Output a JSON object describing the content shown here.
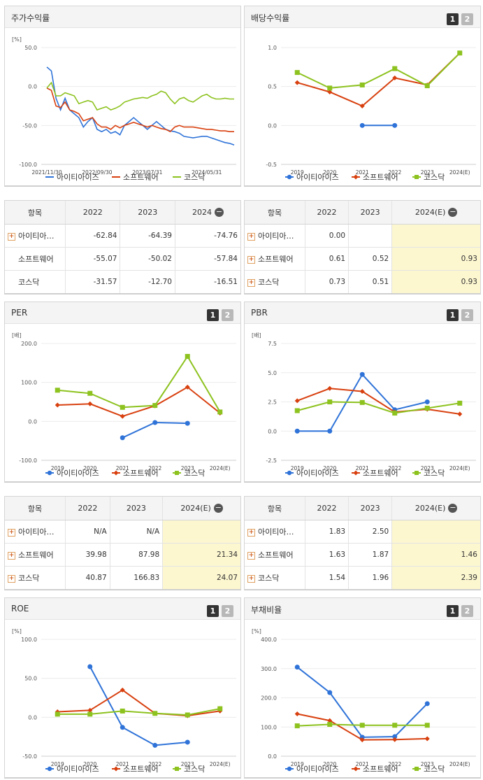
{
  "colors": {
    "blue": "#2f73d8",
    "red": "#d8400f",
    "green": "#8dc21f"
  },
  "legend": [
    "아이티아이즈",
    "소프트웨어",
    "코스닥"
  ],
  "panels": {
    "price": {
      "title": "주가수익률",
      "unit": "[%]",
      "tabs": []
    },
    "dividend": {
      "title": "배당수익률",
      "tabs": [
        "1",
        "2"
      ]
    },
    "per": {
      "title": "PER",
      "unit": "[배]",
      "tabs": [
        "1",
        "2"
      ]
    },
    "pbr": {
      "title": "PBR",
      "unit": "[배]",
      "tabs": [
        "1",
        "2"
      ]
    },
    "roe": {
      "title": "ROE",
      "unit": "[%]",
      "tabs": [
        "1",
        "2"
      ]
    },
    "debt": {
      "title": "부채비율",
      "unit": "[%]",
      "tabs": [
        "1",
        "2"
      ]
    }
  },
  "tables": {
    "price": {
      "headers": [
        "항목",
        "2022",
        "2023",
        "2024"
      ],
      "rows": [
        {
          "name": "아이티아…",
          "plus": true,
          "values": [
            "-62.84",
            "-64.39",
            "-74.76"
          ]
        },
        {
          "name": "소프트웨어",
          "plus": false,
          "values": [
            "-55.07",
            "-50.02",
            "-57.84"
          ]
        },
        {
          "name": "코스닥",
          "plus": false,
          "values": [
            "-31.57",
            "-12.70",
            "-16.51"
          ]
        }
      ]
    },
    "dividend": {
      "headers": [
        "항목",
        "2022",
        "2023",
        "2024(E)"
      ],
      "rows": [
        {
          "name": "아이티아…",
          "plus": true,
          "values": [
            "0.00",
            "",
            ""
          ]
        },
        {
          "name": "소프트웨어",
          "plus": true,
          "values": [
            "0.61",
            "0.52",
            "0.93"
          ]
        },
        {
          "name": "코스닥",
          "plus": true,
          "values": [
            "0.73",
            "0.51",
            "0.93"
          ]
        }
      ]
    },
    "per": {
      "headers": [
        "항목",
        "2022",
        "2023",
        "2024(E)"
      ],
      "rows": [
        {
          "name": "아이티아…",
          "plus": true,
          "values": [
            "N/A",
            "N/A",
            ""
          ]
        },
        {
          "name": "소프트웨어",
          "plus": true,
          "values": [
            "39.98",
            "87.98",
            "21.34"
          ]
        },
        {
          "name": "코스닥",
          "plus": true,
          "values": [
            "40.87",
            "166.83",
            "24.07"
          ]
        }
      ]
    },
    "pbr": {
      "headers": [
        "항목",
        "2022",
        "2023",
        "2024(E)"
      ],
      "rows": [
        {
          "name": "아이티아…",
          "plus": true,
          "values": [
            "1.83",
            "2.50",
            ""
          ]
        },
        {
          "name": "소프트웨어",
          "plus": true,
          "values": [
            "1.63",
            "1.87",
            "1.46"
          ]
        },
        {
          "name": "코스닥",
          "plus": true,
          "values": [
            "1.54",
            "1.96",
            "2.39"
          ]
        }
      ]
    }
  },
  "chart_data": [
    {
      "id": "price",
      "type": "line",
      "title": "주가수익률",
      "ylabel": "[%]",
      "ylim": [
        -100,
        50
      ],
      "yticks": [
        "50.0",
        "0.0",
        "-50.0",
        "-100.0"
      ],
      "x_tick_labels": [
        "2021/11/30",
        "2022/09/30",
        "2023/07/31",
        "2024/05/31"
      ],
      "x_count": 42,
      "series": [
        {
          "name": "아이티아이즈",
          "color": "blue",
          "values": [
            25,
            20,
            -15,
            -30,
            -15,
            -30,
            -35,
            -40,
            -52,
            -45,
            -40,
            -55,
            -58,
            -55,
            -60,
            -58,
            -62,
            -50,
            -45,
            -40,
            -45,
            -50,
            -55,
            -50,
            -45,
            -50,
            -55,
            -57,
            -58,
            -60,
            -64,
            -65,
            -66,
            -65,
            -64,
            -64,
            -66,
            -68,
            -70,
            -72,
            -73,
            -75
          ]
        },
        {
          "name": "소프트웨어",
          "color": "red",
          "values": [
            -2,
            -5,
            -25,
            -27,
            -20,
            -30,
            -32,
            -35,
            -44,
            -42,
            -40,
            -48,
            -52,
            -52,
            -55,
            -50,
            -53,
            -50,
            -48,
            -46,
            -48,
            -50,
            -52,
            -50,
            -52,
            -54,
            -55,
            -58,
            -52,
            -50,
            -52,
            -52,
            -52,
            -53,
            -54,
            -55,
            -55,
            -56,
            -57,
            -57,
            -58,
            -58
          ]
        },
        {
          "name": "코스닥",
          "color": "green",
          "values": [
            -2,
            5,
            -12,
            -12,
            -8,
            -10,
            -12,
            -22,
            -20,
            -18,
            -20,
            -30,
            -28,
            -26,
            -30,
            -28,
            -25,
            -20,
            -18,
            -16,
            -15,
            -14,
            -15,
            -12,
            -10,
            -6,
            -8,
            -16,
            -22,
            -16,
            -14,
            -18,
            -20,
            -16,
            -12,
            -10,
            -14,
            -16,
            -16,
            -15,
            -16,
            -16
          ]
        }
      ]
    },
    {
      "id": "dividend",
      "type": "line",
      "title": "배당수익률",
      "ylim": [
        -0.5,
        1.0
      ],
      "yticks": [
        "1.0",
        "0.5",
        "0.0",
        "-0.5"
      ],
      "categories": [
        "2019",
        "2020",
        "2021",
        "2022",
        "2023",
        "2024(E)"
      ],
      "series": [
        {
          "name": "아이티아이즈",
          "color": "blue",
          "marker": "circle",
          "values": [
            null,
            null,
            0.0,
            0.0,
            null,
            null
          ]
        },
        {
          "name": "소프트웨어",
          "color": "red",
          "marker": "diamond",
          "values": [
            0.55,
            0.43,
            0.25,
            0.61,
            0.52,
            0.93
          ]
        },
        {
          "name": "코스닥",
          "color": "green",
          "marker": "square",
          "values": [
            0.68,
            0.48,
            0.52,
            0.73,
            0.51,
            0.93
          ]
        }
      ]
    },
    {
      "id": "per",
      "type": "line",
      "title": "PER",
      "ylabel": "[배]",
      "ylim": [
        -100,
        200
      ],
      "yticks": [
        "200.0",
        "100.0",
        "0.0",
        "-100.0"
      ],
      "categories": [
        "2019",
        "2020",
        "2021",
        "2022",
        "2023",
        "2024(E)"
      ],
      "series": [
        {
          "name": "아이티아이즈",
          "color": "blue",
          "marker": "circle",
          "values": [
            null,
            null,
            -42,
            -3,
            -5,
            null
          ]
        },
        {
          "name": "소프트웨어",
          "color": "red",
          "marker": "diamond",
          "values": [
            42,
            45,
            13,
            39.98,
            87.98,
            21.34
          ]
        },
        {
          "name": "코스닥",
          "color": "green",
          "marker": "square",
          "values": [
            80,
            72,
            36,
            40.87,
            166.83,
            24.07
          ]
        }
      ]
    },
    {
      "id": "pbr",
      "type": "line",
      "title": "PBR",
      "ylabel": "[배]",
      "ylim": [
        -2.5,
        7.5
      ],
      "yticks": [
        "7.5",
        "5.0",
        "2.5",
        "0.0",
        "-2.5"
      ],
      "categories": [
        "2019",
        "2020",
        "2021",
        "2022",
        "2023",
        "2024(E)"
      ],
      "series": [
        {
          "name": "아이티아이즈",
          "color": "blue",
          "marker": "circle",
          "values": [
            0.0,
            0.0,
            4.85,
            1.83,
            2.5,
            null
          ]
        },
        {
          "name": "소프트웨어",
          "color": "red",
          "marker": "diamond",
          "values": [
            2.6,
            3.65,
            3.4,
            1.63,
            1.87,
            1.46
          ]
        },
        {
          "name": "코스닥",
          "color": "green",
          "marker": "square",
          "values": [
            1.75,
            2.5,
            2.45,
            1.54,
            1.96,
            2.39
          ]
        }
      ]
    },
    {
      "id": "roe",
      "type": "line",
      "title": "ROE",
      "ylabel": "[%]",
      "ylim": [
        -50,
        100
      ],
      "yticks": [
        "100.0",
        "50.0",
        "0.0",
        "-50.0"
      ],
      "categories": [
        "2019",
        "2020",
        "2021",
        "2022",
        "2023",
        "2024(E)"
      ],
      "series": [
        {
          "name": "아이티아이즈",
          "color": "blue",
          "marker": "circle",
          "values": [
            null,
            65,
            -13,
            -36,
            -32,
            null
          ]
        },
        {
          "name": "소프트웨어",
          "color": "red",
          "marker": "diamond",
          "values": [
            7,
            9,
            35,
            5,
            2,
            8
          ]
        },
        {
          "name": "코스닥",
          "color": "green",
          "marker": "square",
          "values": [
            4,
            4,
            8,
            5,
            3,
            11
          ]
        }
      ]
    },
    {
      "id": "debt",
      "type": "line",
      "title": "부채비율",
      "ylabel": "[%]",
      "ylim": [
        0,
        400
      ],
      "yticks": [
        "400.0",
        "300.0",
        "200.0",
        "100.0",
        "0.0"
      ],
      "categories": [
        "2019",
        "2020",
        "2021",
        "2022",
        "2023",
        "2024(E)"
      ],
      "series": [
        {
          "name": "아이티아이즈",
          "color": "blue",
          "marker": "circle",
          "values": [
            305,
            218,
            65,
            67,
            180,
            null
          ]
        },
        {
          "name": "소프트웨어",
          "color": "red",
          "marker": "diamond",
          "values": [
            145,
            122,
            56,
            57,
            60,
            null
          ]
        },
        {
          "name": "코스닥",
          "color": "green",
          "marker": "square",
          "values": [
            104,
            109,
            106,
            106,
            106,
            null
          ]
        }
      ]
    }
  ]
}
